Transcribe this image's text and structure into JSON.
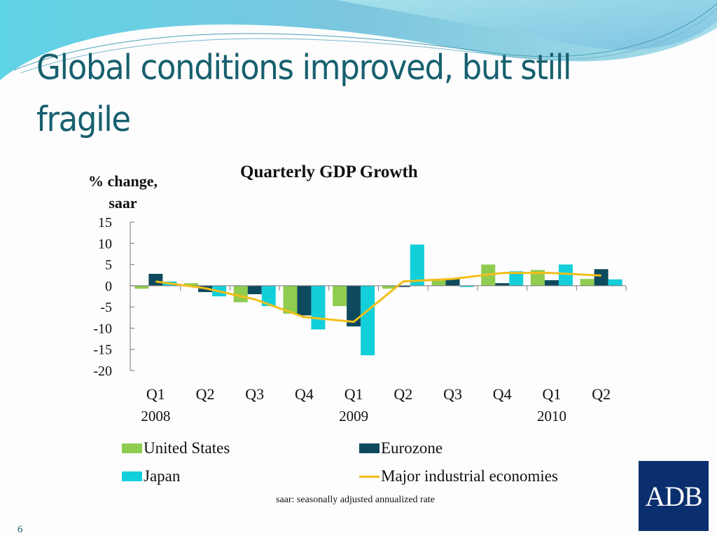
{
  "slide": {
    "title": "Global conditions improved, but still fragile",
    "page_number": "6",
    "logo_text": "ADB",
    "footnote": "saar: seasonally adjusted annualized rate"
  },
  "colors": {
    "title": "#17606f",
    "us": "#8fcc4f",
    "eurozone": "#0e4a5e",
    "japan": "#13cfd9",
    "major": "#f2be1a",
    "logo_bg": "#0b2f6e"
  },
  "chart_data": {
    "type": "bar",
    "title": "Quarterly GDP Growth",
    "ylabel": "% change, saar",
    "xlabel": "",
    "ylim": [
      -20,
      15
    ],
    "yticks": [
      15,
      10,
      5,
      0,
      -5,
      -10,
      -15,
      -20
    ],
    "ytick_labels": [
      "15",
      "10",
      "5",
      "0",
      "-5",
      "-10",
      "-15",
      "-20"
    ],
    "categories": [
      "Q1",
      "Q2",
      "Q3",
      "Q4",
      "Q1",
      "Q2",
      "Q3",
      "Q4",
      "Q1",
      "Q2"
    ],
    "year_labels": [
      "2008",
      "",
      "",
      "",
      "2009",
      "",
      "",
      "",
      "2010",
      ""
    ],
    "grid": false,
    "legend_position": "bottom",
    "series": [
      {
        "name": "United States",
        "kind": "bar",
        "values": [
          -0.7,
          0.6,
          -3.9,
          -6.6,
          -4.8,
          -0.7,
          1.6,
          5.0,
          3.7,
          1.6
        ]
      },
      {
        "name": "Eurozone",
        "kind": "bar",
        "values": [
          2.8,
          -1.5,
          -2.0,
          -7.0,
          -9.6,
          -0.3,
          1.6,
          0.6,
          1.3,
          3.9
        ]
      },
      {
        "name": "Japan",
        "kind": "bar",
        "values": [
          1.0,
          -2.5,
          -4.8,
          -10.3,
          -16.4,
          9.7,
          -0.3,
          3.4,
          5.0,
          1.5
        ]
      },
      {
        "name": "Major industrial economies",
        "kind": "line",
        "values": [
          1.0,
          -0.6,
          -3.2,
          -7.4,
          -8.5,
          1.0,
          1.6,
          3.0,
          3.0,
          2.4
        ]
      }
    ]
  }
}
